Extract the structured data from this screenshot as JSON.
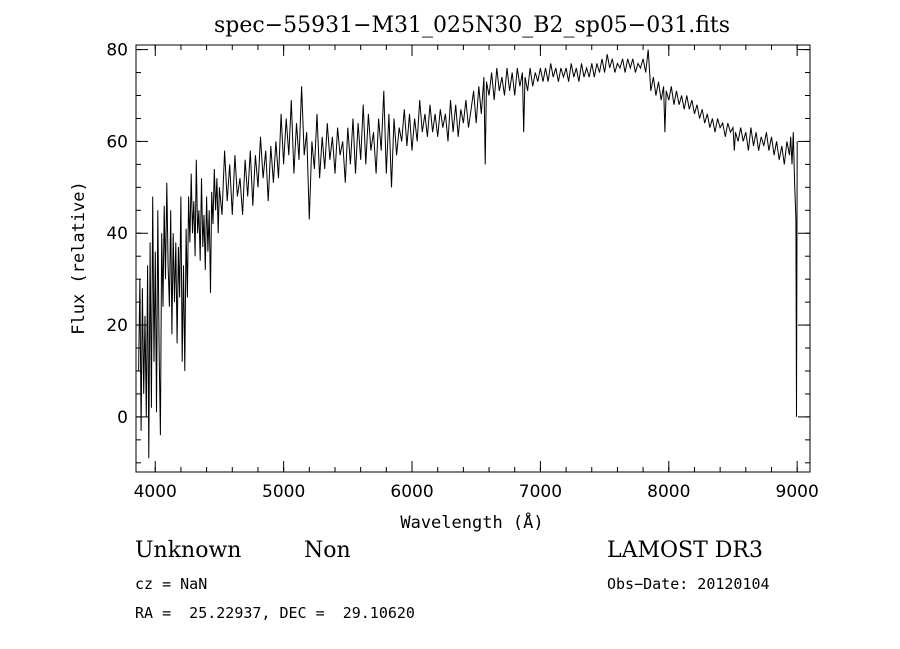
{
  "chart_data": {
    "type": "line",
    "title": "spec−55931−M31_025N30_B2_sp05−031.fits",
    "xlabel": "Wavelength (Å)",
    "ylabel": "Flux (relative)",
    "xlim": [
      3850,
      9100
    ],
    "ylim": [
      -12,
      81
    ],
    "xticks": [
      4000,
      5000,
      6000,
      7000,
      8000,
      9000
    ],
    "xtick_labels": [
      "4000",
      "5000",
      "6000",
      "7000",
      "8000",
      "9000"
    ],
    "yticks": [
      0,
      20,
      40,
      60,
      80
    ],
    "ytick_labels": [
      "0",
      "20",
      "40",
      "60",
      "80"
    ],
    "x_minor_step": 200,
    "y_minor_step": 5,
    "grid": false,
    "line_color": "#000000",
    "series": [
      {
        "points": [
          [
            3870,
            10
          ],
          [
            3880,
            30
          ],
          [
            3890,
            -3
          ],
          [
            3900,
            28
          ],
          [
            3910,
            5
          ],
          [
            3920,
            22
          ],
          [
            3930,
            0
          ],
          [
            3940,
            33
          ],
          [
            3950,
            -9
          ],
          [
            3960,
            38
          ],
          [
            3970,
            2
          ],
          [
            3980,
            48
          ],
          [
            3990,
            12
          ],
          [
            4000,
            36
          ],
          [
            4010,
            1
          ],
          [
            4020,
            45
          ],
          [
            4030,
            15
          ],
          [
            4040,
            -4
          ],
          [
            4050,
            40
          ],
          [
            4060,
            24
          ],
          [
            4070,
            46
          ],
          [
            4080,
            30
          ],
          [
            4090,
            51
          ],
          [
            4100,
            33
          ],
          [
            4110,
            24
          ],
          [
            4120,
            45
          ],
          [
            4130,
            18
          ],
          [
            4140,
            40
          ],
          [
            4150,
            25
          ],
          [
            4160,
            38
          ],
          [
            4170,
            16
          ],
          [
            4180,
            37
          ],
          [
            4190,
            26
          ],
          [
            4200,
            48
          ],
          [
            4210,
            12
          ],
          [
            4220,
            33
          ],
          [
            4230,
            10
          ],
          [
            4240,
            41
          ],
          [
            4250,
            26
          ],
          [
            4260,
            48
          ],
          [
            4270,
            38
          ],
          [
            4280,
            53
          ],
          [
            4290,
            40
          ],
          [
            4300,
            47
          ],
          [
            4310,
            35
          ],
          [
            4320,
            56
          ],
          [
            4330,
            40
          ],
          [
            4340,
            45
          ],
          [
            4350,
            34
          ],
          [
            4360,
            52
          ],
          [
            4370,
            37
          ],
          [
            4380,
            44
          ],
          [
            4390,
            32
          ],
          [
            4400,
            48
          ],
          [
            4410,
            36
          ],
          [
            4420,
            45
          ],
          [
            4430,
            27
          ],
          [
            4440,
            49
          ],
          [
            4450,
            42
          ],
          [
            4460,
            54
          ],
          [
            4470,
            45
          ],
          [
            4480,
            52
          ],
          [
            4490,
            40
          ],
          [
            4500,
            50
          ],
          [
            4520,
            44
          ],
          [
            4540,
            58
          ],
          [
            4560,
            47
          ],
          [
            4580,
            55
          ],
          [
            4600,
            44
          ],
          [
            4620,
            57
          ],
          [
            4640,
            48
          ],
          [
            4660,
            52
          ],
          [
            4680,
            44
          ],
          [
            4700,
            56
          ],
          [
            4720,
            48
          ],
          [
            4740,
            58
          ],
          [
            4760,
            46
          ],
          [
            4780,
            57
          ],
          [
            4800,
            50
          ],
          [
            4820,
            61
          ],
          [
            4840,
            52
          ],
          [
            4860,
            58
          ],
          [
            4880,
            47
          ],
          [
            4900,
            59
          ],
          [
            4920,
            51
          ],
          [
            4940,
            60
          ],
          [
            4960,
            52
          ],
          [
            4980,
            66
          ],
          [
            5000,
            55
          ],
          [
            5020,
            65
          ],
          [
            5040,
            57
          ],
          [
            5060,
            69
          ],
          [
            5080,
            53
          ],
          [
            5100,
            64
          ],
          [
            5120,
            56
          ],
          [
            5140,
            72
          ],
          [
            5160,
            57
          ],
          [
            5180,
            62
          ],
          [
            5200,
            43
          ],
          [
            5220,
            60
          ],
          [
            5240,
            54
          ],
          [
            5260,
            66
          ],
          [
            5280,
            52
          ],
          [
            5300,
            61
          ],
          [
            5320,
            54
          ],
          [
            5340,
            64
          ],
          [
            5360,
            56
          ],
          [
            5380,
            61
          ],
          [
            5400,
            53
          ],
          [
            5420,
            63
          ],
          [
            5440,
            57
          ],
          [
            5460,
            60
          ],
          [
            5480,
            51
          ],
          [
            5500,
            63
          ],
          [
            5520,
            55
          ],
          [
            5540,
            65
          ],
          [
            5560,
            53
          ],
          [
            5580,
            64
          ],
          [
            5600,
            56
          ],
          [
            5620,
            68
          ],
          [
            5640,
            55
          ],
          [
            5660,
            66
          ],
          [
            5680,
            58
          ],
          [
            5700,
            62
          ],
          [
            5720,
            53
          ],
          [
            5740,
            65
          ],
          [
            5760,
            58
          ],
          [
            5780,
            71
          ],
          [
            5800,
            53
          ],
          [
            5820,
            66
          ],
          [
            5840,
            50
          ],
          [
            5860,
            65
          ],
          [
            5880,
            57
          ],
          [
            5900,
            63
          ],
          [
            5920,
            60
          ],
          [
            5940,
            67
          ],
          [
            5960,
            59
          ],
          [
            5980,
            66
          ],
          [
            6000,
            58
          ],
          [
            6020,
            65
          ],
          [
            6040,
            60
          ],
          [
            6060,
            69
          ],
          [
            6080,
            62
          ],
          [
            6100,
            66
          ],
          [
            6120,
            61
          ],
          [
            6140,
            68
          ],
          [
            6160,
            62
          ],
          [
            6180,
            66
          ],
          [
            6200,
            61
          ],
          [
            6220,
            67
          ],
          [
            6240,
            63
          ],
          [
            6260,
            66
          ],
          [
            6280,
            60
          ],
          [
            6300,
            69
          ],
          [
            6320,
            62
          ],
          [
            6340,
            68
          ],
          [
            6360,
            61
          ],
          [
            6380,
            67
          ],
          [
            6400,
            64
          ],
          [
            6420,
            69
          ],
          [
            6440,
            63
          ],
          [
            6460,
            67
          ],
          [
            6480,
            71
          ],
          [
            6500,
            64
          ],
          [
            6520,
            72
          ],
          [
            6540,
            66
          ],
          [
            6560,
            74
          ],
          [
            6570,
            55
          ],
          [
            6580,
            73
          ],
          [
            6600,
            70
          ],
          [
            6620,
            75
          ],
          [
            6640,
            69
          ],
          [
            6660,
            76
          ],
          [
            6680,
            71
          ],
          [
            6700,
            74
          ],
          [
            6720,
            70
          ],
          [
            6740,
            76
          ],
          [
            6760,
            71
          ],
          [
            6780,
            75
          ],
          [
            6800,
            70
          ],
          [
            6820,
            76
          ],
          [
            6840,
            72
          ],
          [
            6860,
            75
          ],
          [
            6870,
            62
          ],
          [
            6880,
            74
          ],
          [
            6900,
            71
          ],
          [
            6920,
            76
          ],
          [
            6940,
            72
          ],
          [
            6960,
            75
          ],
          [
            6980,
            73
          ],
          [
            7000,
            76
          ],
          [
            7020,
            73
          ],
          [
            7040,
            76
          ],
          [
            7060,
            73
          ],
          [
            7080,
            77
          ],
          [
            7100,
            74
          ],
          [
            7120,
            76
          ],
          [
            7140,
            73
          ],
          [
            7160,
            76
          ],
          [
            7180,
            74
          ],
          [
            7200,
            76
          ],
          [
            7220,
            73
          ],
          [
            7240,
            77
          ],
          [
            7260,
            74
          ],
          [
            7280,
            76
          ],
          [
            7300,
            73
          ],
          [
            7320,
            77
          ],
          [
            7340,
            74
          ],
          [
            7360,
            76
          ],
          [
            7380,
            74
          ],
          [
            7400,
            77
          ],
          [
            7420,
            74
          ],
          [
            7440,
            77
          ],
          [
            7460,
            75
          ],
          [
            7480,
            78
          ],
          [
            7500,
            75
          ],
          [
            7520,
            79
          ],
          [
            7540,
            76
          ],
          [
            7560,
            78
          ],
          [
            7580,
            75
          ],
          [
            7600,
            77
          ],
          [
            7620,
            76
          ],
          [
            7640,
            78
          ],
          [
            7660,
            75
          ],
          [
            7680,
            78
          ],
          [
            7700,
            76
          ],
          [
            7720,
            78
          ],
          [
            7740,
            75
          ],
          [
            7760,
            77
          ],
          [
            7780,
            76
          ],
          [
            7800,
            78
          ],
          [
            7820,
            75
          ],
          [
            7840,
            80
          ],
          [
            7860,
            71
          ],
          [
            7880,
            74
          ],
          [
            7900,
            70
          ],
          [
            7920,
            73
          ],
          [
            7940,
            69
          ],
          [
            7960,
            72
          ],
          [
            7970,
            62
          ],
          [
            7980,
            71
          ],
          [
            8000,
            69
          ],
          [
            8020,
            72
          ],
          [
            8040,
            68
          ],
          [
            8060,
            71
          ],
          [
            8080,
            68
          ],
          [
            8100,
            70
          ],
          [
            8120,
            67
          ],
          [
            8140,
            70
          ],
          [
            8160,
            67
          ],
          [
            8180,
            69
          ],
          [
            8200,
            66
          ],
          [
            8220,
            68
          ],
          [
            8240,
            65
          ],
          [
            8260,
            67
          ],
          [
            8280,
            64
          ],
          [
            8300,
            66
          ],
          [
            8320,
            63
          ],
          [
            8340,
            65
          ],
          [
            8360,
            62
          ],
          [
            8380,
            65
          ],
          [
            8400,
            63
          ],
          [
            8420,
            64
          ],
          [
            8440,
            61
          ],
          [
            8460,
            64
          ],
          [
            8480,
            62
          ],
          [
            8500,
            63
          ],
          [
            8510,
            58
          ],
          [
            8520,
            62
          ],
          [
            8540,
            60
          ],
          [
            8560,
            63
          ],
          [
            8580,
            60
          ],
          [
            8600,
            62
          ],
          [
            8620,
            58
          ],
          [
            8640,
            63
          ],
          [
            8660,
            59
          ],
          [
            8680,
            62
          ],
          [
            8700,
            58
          ],
          [
            8720,
            61
          ],
          [
            8740,
            59
          ],
          [
            8760,
            62
          ],
          [
            8780,
            58
          ],
          [
            8800,
            61
          ],
          [
            8820,
            57
          ],
          [
            8840,
            60
          ],
          [
            8860,
            56
          ],
          [
            8880,
            59
          ],
          [
            8900,
            55
          ],
          [
            8920,
            60
          ],
          [
            8940,
            57
          ],
          [
            8950,
            61
          ],
          [
            8960,
            55
          ],
          [
            8970,
            62
          ],
          [
            8980,
            51
          ],
          [
            8990,
            43
          ],
          [
            8995,
            0
          ],
          [
            9000,
            60
          ]
        ]
      }
    ]
  },
  "info": {
    "object_class": "Unknown",
    "object_subclass": "Non",
    "survey": "LAMOST DR3",
    "cz": "cz = NaN",
    "obs_date": "Obs−Date: 20120104",
    "coords": "RA =  25.22937, DEC =  29.10620"
  }
}
